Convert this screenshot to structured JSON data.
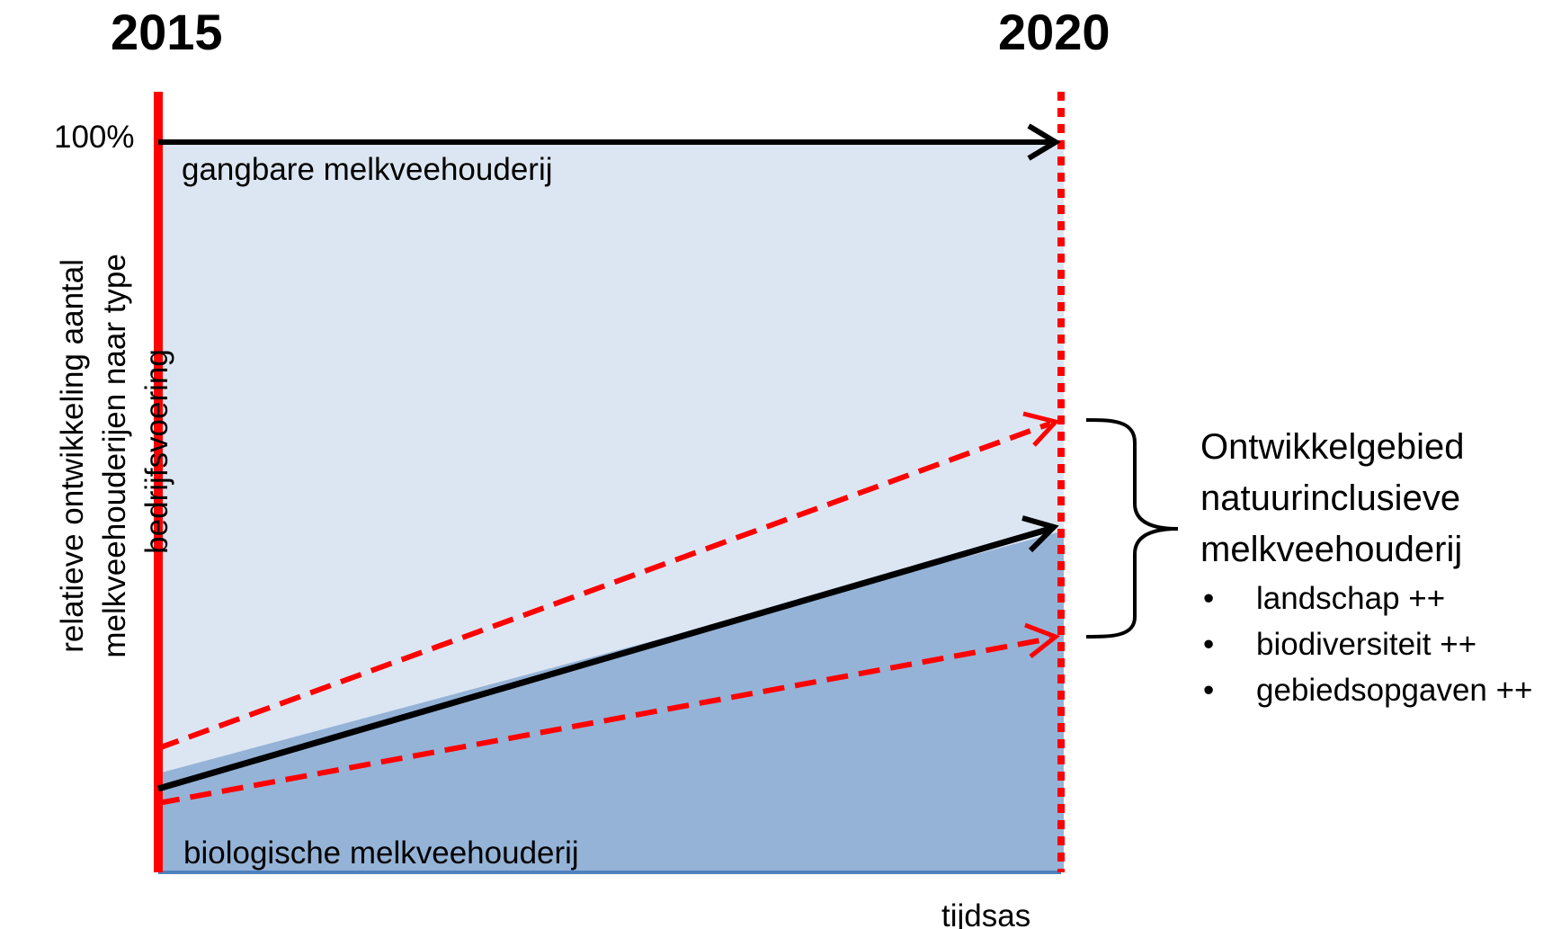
{
  "years": {
    "start": "2015",
    "end": "2020"
  },
  "y_axis": {
    "tick_100": "100%",
    "label_lines": [
      "relatieve ontwikkeling aantal",
      "melkveehouderijen naar type",
      "bedrijfsvoering"
    ]
  },
  "x_axis": {
    "label": "tijdsas"
  },
  "regions": {
    "top_label": "gangbare melkveehouderij",
    "bottom_label": "biologische melkveehouderij"
  },
  "legend": {
    "title_lines": [
      "Ontwikkelgebied",
      "natuurinclusieve",
      "melkveehouderij"
    ],
    "bullets": [
      "landschap  ++",
      "biodiversiteit  ++",
      "gebiedsopgaven ++"
    ]
  },
  "colors": {
    "axis_red": "#ff0000",
    "light_fill": "#dce6f2",
    "dark_fill": "#95b3d7",
    "baseline": "#4f81bd",
    "arrow_black": "#000000"
  },
  "icons": {
    "bullet": "•"
  }
}
